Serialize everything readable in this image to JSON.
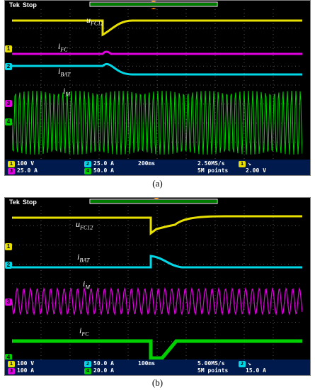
{
  "colors": {
    "ch1": "#e8e000",
    "ch2": "#00d8e8",
    "ch3": "#e000e0",
    "ch4": "#00d000",
    "grid": "#555555",
    "status_bg": "#001a4d"
  },
  "panels": [
    {
      "caption": "(a)",
      "brand": "Tek",
      "state": "Stop",
      "trace_labels": [
        {
          "base": "u",
          "sub": "FC12"
        },
        {
          "base": "i",
          "sub": "FC"
        },
        {
          "base": "i",
          "sub": "BAT"
        },
        {
          "base": "i",
          "sub": "M"
        }
      ],
      "channel_markers": [
        "1",
        "3",
        "2",
        "3",
        "4"
      ],
      "status": {
        "row1": [
          {
            "badge": "1",
            "text": "100 V"
          },
          {
            "badge": "2",
            "text": "25.0 A"
          }
        ],
        "row2": [
          {
            "badge": "3",
            "text": "25.0 A"
          },
          {
            "badge": "4",
            "text": "50.0 A"
          }
        ],
        "timebase": "200ms",
        "sample_rate": "2.50MS/s",
        "points": "5M points",
        "trigger_channel": "1",
        "trigger_level": "2.00 V"
      }
    },
    {
      "caption": "(b)",
      "brand": "Tek",
      "state": "Stop",
      "trace_labels": [
        {
          "base": "u",
          "sub": "FC12"
        },
        {
          "base": "i",
          "sub": "BAT"
        },
        {
          "base": "i",
          "sub": "M"
        },
        {
          "base": "i",
          "sub": "FC"
        }
      ],
      "channel_markers": [
        "1",
        "2",
        "3",
        "4"
      ],
      "status": {
        "row1": [
          {
            "badge": "1",
            "text": "100 V"
          },
          {
            "badge": "2",
            "text": "50.0 A"
          }
        ],
        "row2": [
          {
            "badge": "3",
            "text": "100 A"
          },
          {
            "badge": "4",
            "text": "20.0 A"
          }
        ],
        "timebase": "100ms",
        "sample_rate": "5.00MS/s",
        "points": "5M points",
        "trigger_channel": "2",
        "trigger_level": "15.0 A"
      }
    }
  ]
}
